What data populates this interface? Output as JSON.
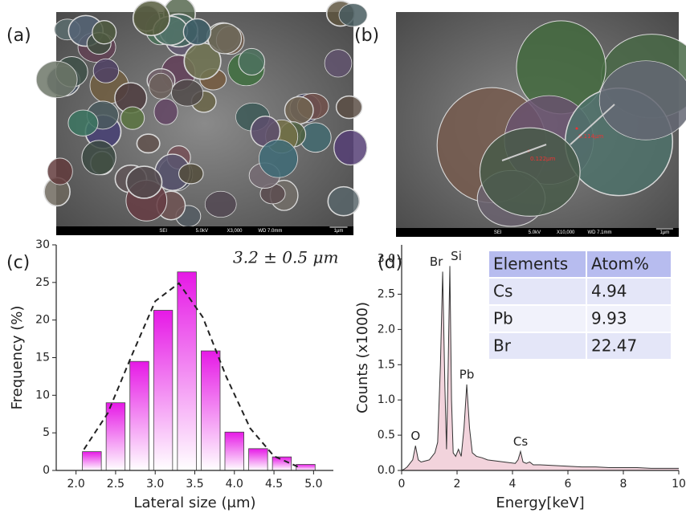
{
  "images": [
    {
      "label": "(a)",
      "info": [
        "SEI",
        "5.0kV",
        "X3,000",
        "WD 7.0mm",
        "1μm"
      ]
    },
    {
      "label": "(b)",
      "info": [
        "SEI",
        "5.0kV",
        "X10,000",
        "WD 7.1mm",
        "1μm"
      ],
      "annotations": [
        "0.122μm",
        "0.114μm"
      ]
    }
  ],
  "chart_data": [
    {
      "type": "histogram",
      "panel_label": "(c)",
      "x_label": "Lateral size (μm)",
      "y_label": "Frequency (%)",
      "annotation": "3.2 ± 0.5 μm",
      "color": "#e619e6",
      "bins": [
        2.05,
        2.35,
        2.65,
        2.95,
        3.25,
        3.55,
        3.85,
        4.15,
        4.45,
        4.75,
        5.05
      ],
      "values": [
        2.5,
        9,
        14.5,
        21.3,
        26.4,
        15.9,
        5.1,
        2.9,
        1.8,
        0.8
      ],
      "fit": {
        "x": [
          2.1,
          2.4,
          2.7,
          3.0,
          3.3,
          3.6,
          3.9,
          4.2,
          4.5,
          4.8
        ],
        "values": [
          2.8,
          7.6,
          15.2,
          22.5,
          24.9,
          20.4,
          12.4,
          5.6,
          1.9,
          0.5
        ]
      },
      "xlim": [
        1.75,
        5.25
      ],
      "ylim": [
        0,
        30
      ],
      "xticks": [
        {
          "value": 2,
          "label": "2.0"
        },
        2.5,
        {
          "value": 3,
          "label": "3.0"
        },
        3.5,
        {
          "value": 4,
          "label": "4.0"
        },
        4.5,
        {
          "value": 5,
          "label": "5.0"
        }
      ],
      "yticks": [
        0,
        5,
        10,
        15,
        20,
        25,
        30
      ]
    },
    {
      "type": "line",
      "panel_label": "(d)",
      "x_label": "Energy[keV]",
      "y_label": "Counts (x1000)",
      "color": "#f2d3dc",
      "line_color": "#333333",
      "x": [
        0.0,
        0.1,
        0.2,
        0.3,
        0.4,
        0.5,
        0.6,
        0.7,
        0.8,
        0.9,
        1.0,
        1.1,
        1.2,
        1.3,
        1.4,
        1.48,
        1.56,
        1.62,
        1.68,
        1.74,
        1.8,
        1.86,
        1.95,
        2.05,
        2.15,
        2.25,
        2.35,
        2.45,
        2.55,
        2.7,
        2.9,
        3.1,
        3.3,
        3.5,
        3.7,
        3.9,
        4.1,
        4.2,
        4.29,
        4.38,
        4.5,
        4.62,
        4.75,
        5.0,
        5.5,
        6.0,
        6.5,
        7.0,
        7.5,
        8.0,
        8.5,
        9.0,
        9.5,
        10.0
      ],
      "values": [
        0,
        0.02,
        0.05,
        0.1,
        0.15,
        0.35,
        0.15,
        0.12,
        0.13,
        0.14,
        0.15,
        0.2,
        0.25,
        0.4,
        1.5,
        2.82,
        1.2,
        0.3,
        1.5,
        2.9,
        1.0,
        0.25,
        0.2,
        0.3,
        0.2,
        0.6,
        1.22,
        0.6,
        0.25,
        0.2,
        0.18,
        0.15,
        0.14,
        0.13,
        0.12,
        0.11,
        0.1,
        0.15,
        0.27,
        0.12,
        0.1,
        0.12,
        0.08,
        0.08,
        0.07,
        0.06,
        0.05,
        0.05,
        0.04,
        0.04,
        0.04,
        0.03,
        0.03,
        0.03
      ],
      "peak_labels": [
        {
          "text": "O",
          "x": 0.5,
          "y": 0.35
        },
        {
          "text": "Br",
          "x": 1.48,
          "y": 2.82
        },
        {
          "text": "Si",
          "x": 1.74,
          "y": 2.9
        },
        {
          "text": "Pb",
          "x": 2.35,
          "y": 1.22
        },
        {
          "text": "Cs",
          "x": 4.29,
          "y": 0.27
        }
      ],
      "xlim": [
        0,
        10
      ],
      "ylim": [
        0,
        3.2
      ],
      "xticks": [
        0,
        2,
        4,
        6,
        8,
        10
      ],
      "yticks": [
        {
          "value": 0,
          "label": "0.0"
        },
        0.5,
        {
          "value": 1,
          "label": "1.0"
        },
        1.5,
        {
          "value": 2,
          "label": "2.0"
        },
        2.5,
        {
          "value": 3,
          "label": "3.0"
        }
      ],
      "table": {
        "header": [
          "Elements",
          "Atom%"
        ],
        "rows": [
          [
            "Cs",
            4.94
          ],
          [
            "Pb",
            9.93
          ],
          [
            "Br",
            22.47
          ]
        ]
      }
    }
  ]
}
